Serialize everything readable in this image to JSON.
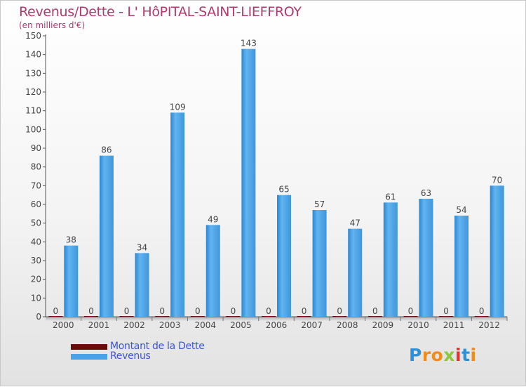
{
  "title": "Revenus/Dette - L' HôPITAL-SAINT-LIEFFROY",
  "subtitle": "(en milliers d'€)",
  "chart_data": {
    "type": "bar",
    "categories": [
      "2000",
      "2001",
      "2002",
      "2003",
      "2004",
      "2005",
      "2006",
      "2007",
      "2008",
      "2009",
      "2010",
      "2011",
      "2012"
    ],
    "series": [
      {
        "name": "Montant de la Dette",
        "color": "#6b0a0a",
        "values": [
          0,
          0,
          0,
          0,
          0,
          0,
          0,
          0,
          0,
          0,
          0,
          0,
          0
        ]
      },
      {
        "name": "Revenus",
        "color": "#4aa3e8",
        "values": [
          38,
          86,
          34,
          109,
          49,
          143,
          65,
          57,
          47,
          61,
          63,
          54,
          70
        ]
      }
    ],
    "y_ticks": [
      0,
      10,
      20,
      30,
      40,
      50,
      60,
      70,
      80,
      90,
      100,
      110,
      120,
      130,
      140,
      150
    ],
    "ylim": [
      0,
      150
    ],
    "grid": false,
    "legend_position": "bottom-left"
  },
  "logo": {
    "text": "Proxiti",
    "letters": [
      {
        "ch": "P",
        "color": "#2f8fd8"
      },
      {
        "ch": "r",
        "color": "#f08c1c"
      },
      {
        "ch": "o",
        "color": "#f08c1c"
      },
      {
        "ch": "x",
        "color": "#8dc63f"
      },
      {
        "ch": "i",
        "color": "#e8312f"
      },
      {
        "ch": "t",
        "color": "#2f8fd8"
      },
      {
        "ch": "i",
        "color": "#f08c1c"
      }
    ]
  }
}
